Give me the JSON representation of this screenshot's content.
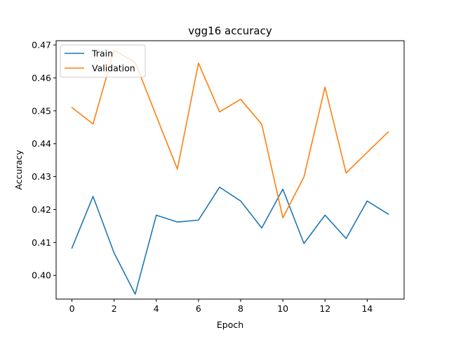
{
  "chart_data": {
    "type": "line",
    "title": "vgg16 accuracy",
    "xlabel": "Epoch",
    "ylabel": "Accuracy",
    "x": [
      0,
      1,
      2,
      3,
      4,
      5,
      6,
      7,
      8,
      9,
      10,
      11,
      12,
      13,
      14,
      15
    ],
    "xlim": [
      -0.75,
      15.75
    ],
    "ylim": [
      0.3928,
      0.4713
    ],
    "xticks": [
      0,
      2,
      4,
      6,
      8,
      10,
      12,
      14
    ],
    "yticks": [
      0.4,
      0.41,
      0.42,
      0.43,
      0.44,
      0.45,
      0.46,
      0.47
    ],
    "ytick_labels": [
      "0.40",
      "0.41",
      "0.42",
      "0.43",
      "0.44",
      "0.45",
      "0.46",
      "0.47"
    ],
    "grid": false,
    "legend_position": "top-left",
    "series": [
      {
        "name": "Train",
        "color": "#1f77b4",
        "values": [
          0.4083,
          0.424,
          0.4068,
          0.3943,
          0.4183,
          0.4162,
          0.4168,
          0.4268,
          0.4226,
          0.4144,
          0.4262,
          0.4097,
          0.4183,
          0.4112,
          0.4226,
          0.4186
        ]
      },
      {
        "name": "Validation",
        "color": "#ff7f0e",
        "values": [
          0.451,
          0.446,
          0.4685,
          0.4647,
          0.4484,
          0.4323,
          0.4645,
          0.4497,
          0.4535,
          0.4459,
          0.4175,
          0.4299,
          0.4572,
          0.4311,
          0.4374,
          0.4436
        ]
      }
    ]
  }
}
